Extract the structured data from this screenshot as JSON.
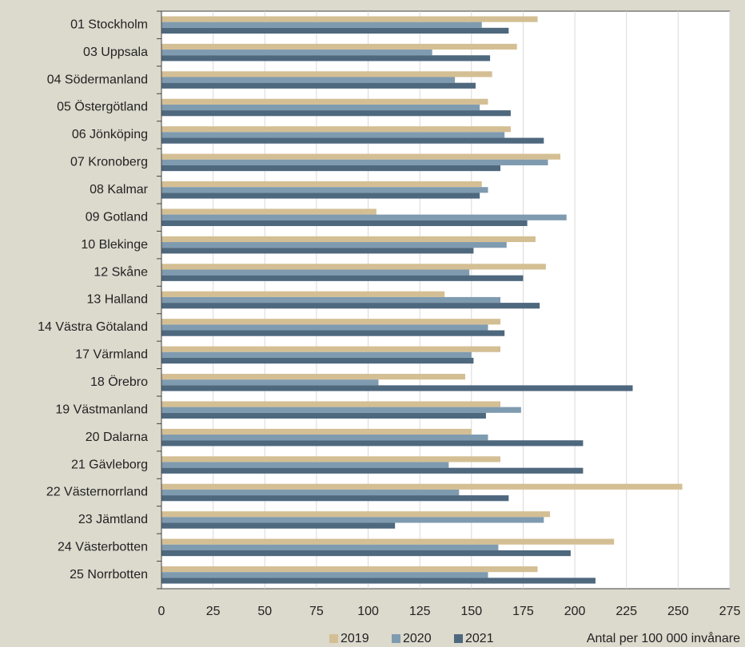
{
  "chart_data": {
    "type": "barh",
    "categories": [
      "01 Stockholm",
      "03 Uppsala",
      "04 Södermanland",
      "05 Östergötland",
      "06 Jönköping",
      "07 Kronoberg",
      "08 Kalmar",
      "09 Gotland",
      "10 Blekinge",
      "12 Skåne",
      "13 Halland",
      "14 Västra Götaland",
      "17 Värmland",
      "18 Örebro",
      "19 Västmanland",
      "20 Dalarna",
      "21 Gävleborg",
      "22 Västernorrland",
      "23 Jämtland",
      "24 Västerbotten",
      "25 Norrbotten"
    ],
    "series": [
      {
        "name": "2019",
        "color": "#d4bf94",
        "values": [
          182,
          172,
          160,
          158,
          169,
          193,
          155,
          104,
          181,
          186,
          137,
          164,
          164,
          147,
          164,
          150,
          164,
          252,
          188,
          219,
          182
        ]
      },
      {
        "name": "2020",
        "color": "#7f9bb0",
        "values": [
          155,
          131,
          142,
          154,
          166,
          187,
          158,
          196,
          167,
          149,
          164,
          158,
          150,
          105,
          174,
          158,
          139,
          144,
          185,
          163,
          158
        ]
      },
      {
        "name": "2021",
        "color": "#4e687e",
        "values": [
          168,
          159,
          152,
          169,
          185,
          164,
          154,
          177,
          151,
          175,
          183,
          166,
          151,
          228,
          157,
          204,
          204,
          168,
          113,
          198,
          210
        ]
      }
    ],
    "xlim": [
      0,
      275
    ],
    "xticks": [
      0,
      25,
      50,
      75,
      100,
      125,
      150,
      175,
      200,
      225,
      250,
      275
    ],
    "grid": true,
    "legend_note": "Antal per 100 000 invånare"
  }
}
